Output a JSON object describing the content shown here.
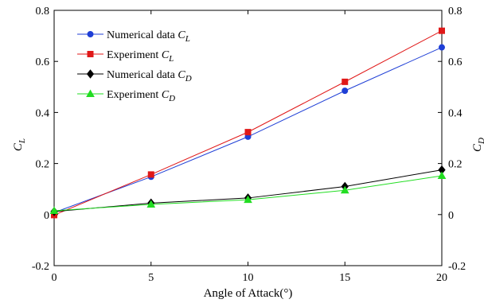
{
  "chart_data": {
    "type": "line",
    "xlabel": "Angle of Attack(°)",
    "ylabel_left": {
      "main": "C",
      "sub": "L"
    },
    "ylabel_right": {
      "main": "C",
      "sub": "D"
    },
    "xlim": [
      0,
      20
    ],
    "ylim": [
      -0.2,
      0.8
    ],
    "xticks": [
      0,
      5,
      10,
      15,
      20
    ],
    "xtick_labels": [
      "0",
      "5",
      "10",
      "15",
      "20"
    ],
    "yticks": [
      -0.2,
      0,
      0.2,
      0.4,
      0.6,
      0.8
    ],
    "ytick_labels": [
      "-0.2",
      "0",
      "0.2",
      "0.4",
      "0.6",
      "0.8"
    ],
    "grid": false,
    "legend_position": "top-left",
    "series": [
      {
        "name": "Numerical data ",
        "sub": "L",
        "color": "#1f3fd6",
        "marker": "circle",
        "x": [
          0,
          5,
          10,
          15,
          20
        ],
        "y": [
          0.008,
          0.148,
          0.305,
          0.485,
          0.655
        ]
      },
      {
        "name": "Experiment ",
        "sub": "L",
        "color": "#e01818",
        "marker": "square",
        "x": [
          0,
          5,
          10,
          15,
          20
        ],
        "y": [
          -0.002,
          0.157,
          0.323,
          0.52,
          0.72
        ]
      },
      {
        "name": "Numerical data ",
        "sub": "D",
        "color": "#000000",
        "marker": "diamond",
        "x": [
          0,
          5,
          10,
          15,
          20
        ],
        "y": [
          0.012,
          0.045,
          0.065,
          0.11,
          0.175
        ]
      },
      {
        "name": "Experiment ",
        "sub": "D",
        "color": "#22dd22",
        "marker": "triangle",
        "x": [
          0,
          5,
          10,
          15,
          20
        ],
        "y": [
          0.015,
          0.04,
          0.058,
          0.095,
          0.152
        ]
      }
    ]
  }
}
